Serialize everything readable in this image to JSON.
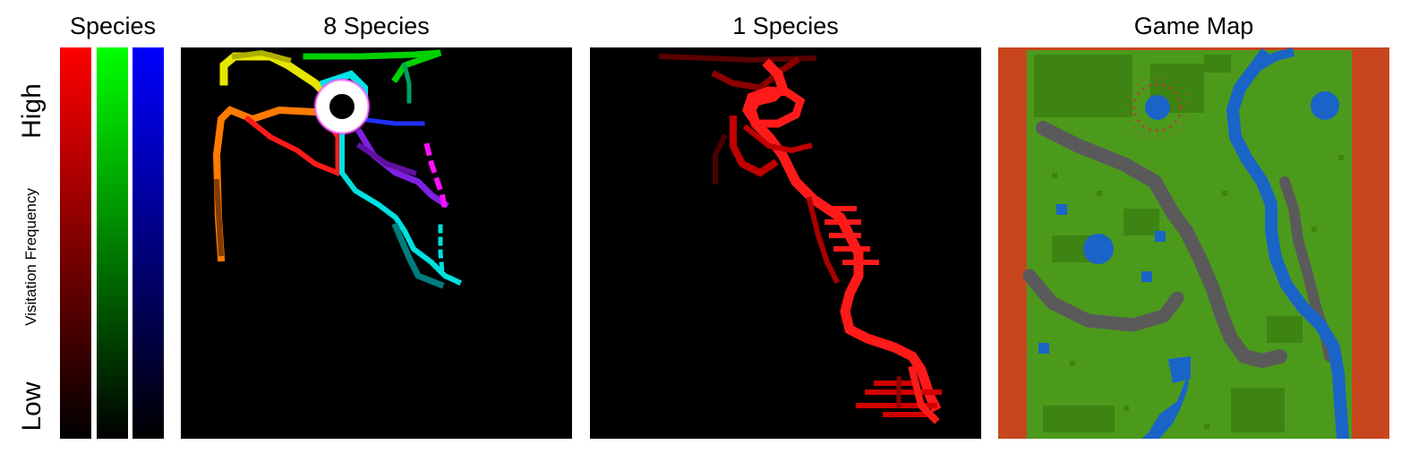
{
  "legend": {
    "title": "Species",
    "high_label": "High",
    "low_label": "Low",
    "axis_label": "Visitation Frequency",
    "bars": [
      {
        "name": "red",
        "color": "#ff0000"
      },
      {
        "name": "green",
        "color": "#00ff00"
      },
      {
        "name": "blue",
        "color": "#0000ff"
      }
    ]
  },
  "panels": {
    "eight_species_title": "8 Species",
    "one_species_title": "1 Species",
    "game_map_title": "Game Map"
  },
  "colors": {
    "background": "#000000",
    "heat_red": "#ff1a1a",
    "grass": "#4c9a1c",
    "grass_dark": "#3f8a14",
    "water": "#1a64c8",
    "rock": "#5a5a5a",
    "border": "#c8461e"
  }
}
